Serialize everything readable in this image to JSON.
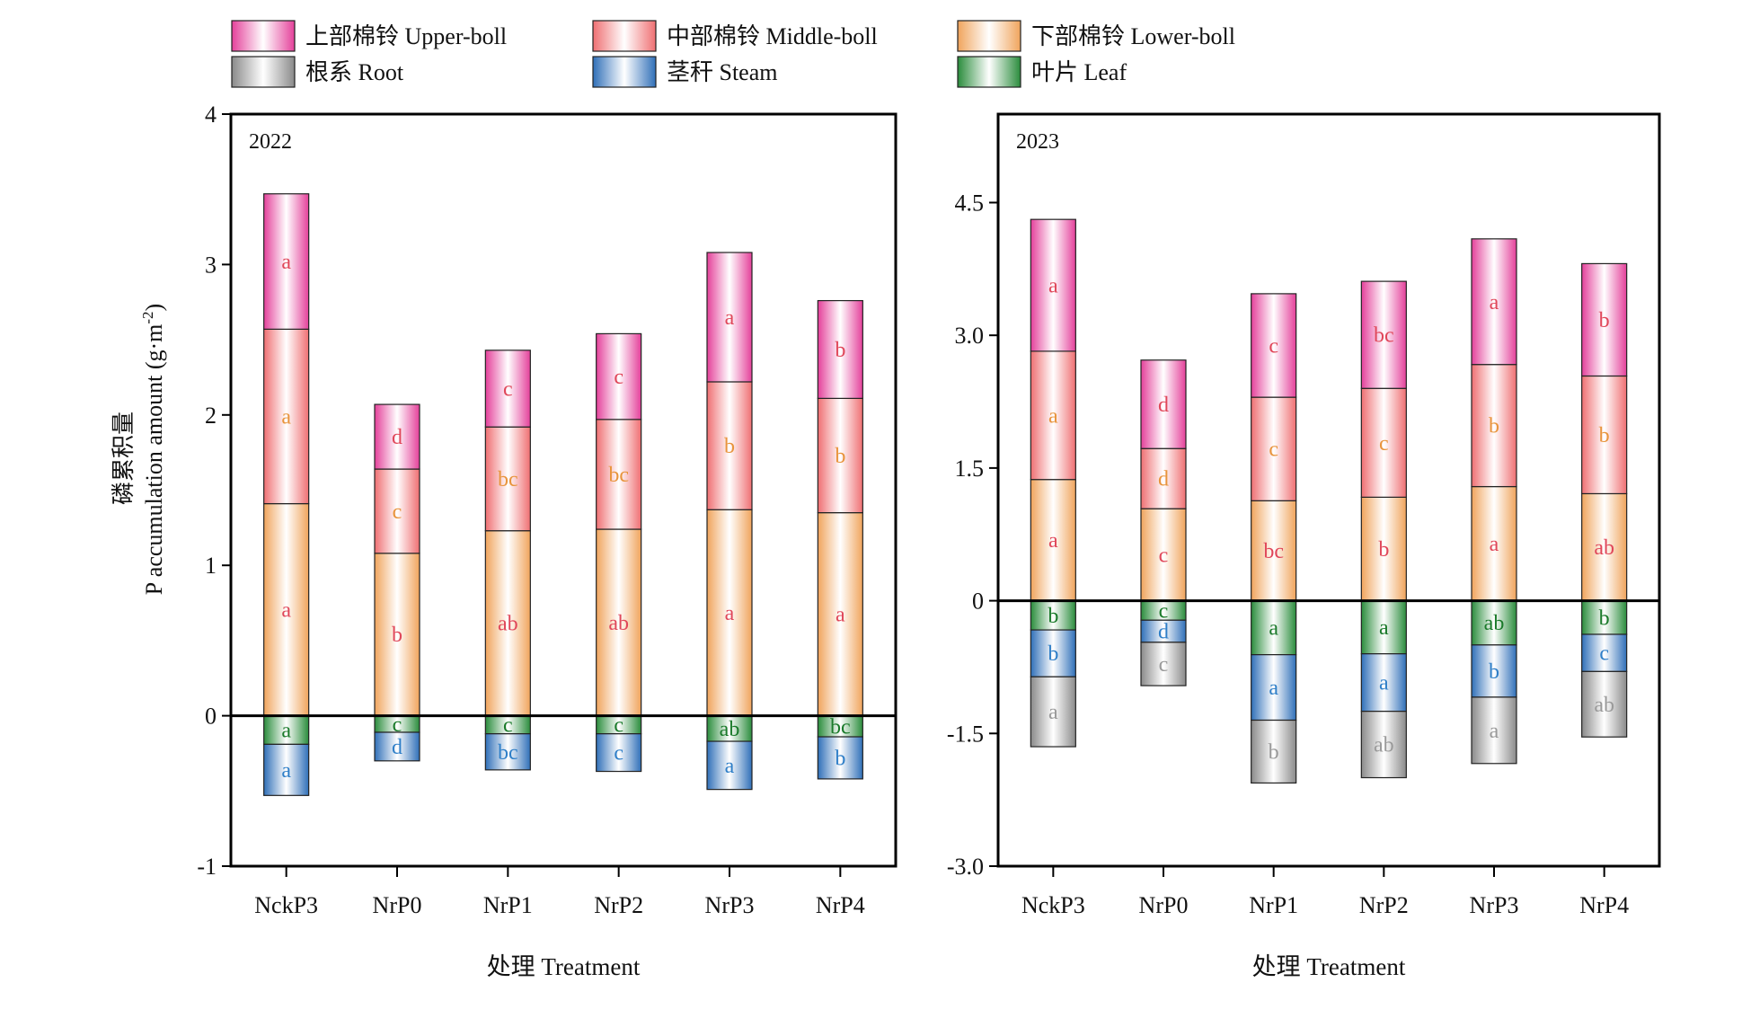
{
  "legend": [
    {
      "key": "upper",
      "label": "上部棉铃 Upper-boll",
      "color": "#e4409a"
    },
    {
      "key": "middle",
      "label": "中部棉铃 Middle-boll",
      "color": "#ef6f72"
    },
    {
      "key": "lower",
      "label": "下部棉铃 Lower-boll",
      "color": "#f0a45c"
    },
    {
      "key": "root",
      "label": "根系 Root",
      "color": "#8a8a8a"
    },
    {
      "key": "stem",
      "label": "茎秆 Steam",
      "color": "#2f6fb8"
    },
    {
      "key": "leaf",
      "label": "叶片 Leaf",
      "color": "#2a8c3c"
    }
  ],
  "letter_colors": {
    "upper": "#e0475a",
    "middle": "#e8943c",
    "lower": "#e0475a",
    "root": "#9a9a9a",
    "stem": "#2f7fc8",
    "leaf": "#1a7a2a"
  },
  "ylabel_line1": "磷累积量",
  "ylabel_line2": "P accumulation amount (g·m",
  "ylabel_sup": "-2",
  "ylabel_end": ")",
  "chart_data": [
    {
      "type": "bar",
      "stacked": true,
      "panel_label": "2022",
      "xlabel": "处理 Treatment",
      "ylim": [
        -1,
        4
      ],
      "yticks": [
        -1,
        0,
        1,
        2,
        3,
        4
      ],
      "ytick_labels": [
        "-1",
        "0",
        "1",
        "2",
        "3",
        "4"
      ],
      "categories": [
        "NckP3",
        "NrP0",
        "NrP1",
        "NrP2",
        "NrP3",
        "NrP4"
      ],
      "series": [
        {
          "key": "lower",
          "name": "下部棉铃 Lower-boll",
          "values": [
            1.41,
            1.08,
            1.23,
            1.24,
            1.37,
            1.35
          ],
          "letters": [
            "a",
            "b",
            "ab",
            "ab",
            "a",
            "a"
          ]
        },
        {
          "key": "middle",
          "name": "中部棉铃 Middle-boll",
          "values": [
            1.16,
            0.56,
            0.69,
            0.73,
            0.85,
            0.76
          ],
          "letters": [
            "a",
            "c",
            "bc",
            "bc",
            "b",
            "b"
          ]
        },
        {
          "key": "upper",
          "name": "上部棉铃 Upper-boll",
          "values": [
            0.9,
            0.43,
            0.51,
            0.57,
            0.86,
            0.65
          ],
          "letters": [
            "a",
            "d",
            "c",
            "c",
            "a",
            "b"
          ]
        },
        {
          "key": "leaf",
          "name": "叶片 Leaf",
          "values": [
            -0.19,
            -0.11,
            -0.12,
            -0.12,
            -0.17,
            -0.14
          ],
          "letters": [
            "a",
            "c",
            "c",
            "c",
            "ab",
            "bc"
          ]
        },
        {
          "key": "stem",
          "name": "茎秆 Steam",
          "values": [
            -0.34,
            -0.19,
            -0.24,
            -0.25,
            -0.32,
            -0.28
          ],
          "letters": [
            "a",
            "d",
            "bc",
            "c",
            "a",
            "b"
          ]
        }
      ]
    },
    {
      "type": "bar",
      "stacked": true,
      "panel_label": "2023",
      "xlabel": "处理 Treatment",
      "ylim": [
        -3.0,
        5.5
      ],
      "yticks": [
        -3.0,
        -1.5,
        0,
        1.5,
        3.0,
        4.5
      ],
      "ytick_labels": [
        "-3.0",
        "-1.5",
        "0",
        "1.5",
        "3.0",
        "4.5"
      ],
      "categories": [
        "NckP3",
        "NrP0",
        "NrP1",
        "NrP2",
        "NrP3",
        "NrP4"
      ],
      "series": [
        {
          "key": "lower",
          "name": "下部棉铃 Lower-boll",
          "values": [
            1.37,
            1.04,
            1.13,
            1.17,
            1.29,
            1.21
          ],
          "letters": [
            "a",
            "c",
            "bc",
            "b",
            "a",
            "ab"
          ]
        },
        {
          "key": "middle",
          "name": "中部棉铃 Middle-boll",
          "values": [
            1.45,
            0.68,
            1.17,
            1.23,
            1.38,
            1.33
          ],
          "letters": [
            "a",
            "d",
            "c",
            "c",
            "b",
            "b"
          ]
        },
        {
          "key": "upper",
          "name": "上部棉铃 Upper-boll",
          "values": [
            1.49,
            1.0,
            1.17,
            1.21,
            1.42,
            1.27
          ],
          "letters": [
            "a",
            "d",
            "c",
            "bc",
            "a",
            "b"
          ]
        },
        {
          "key": "leaf",
          "name": "叶片 Leaf",
          "values": [
            -0.33,
            -0.22,
            -0.61,
            -0.6,
            -0.5,
            -0.38
          ],
          "letters": [
            "b",
            "c",
            "a",
            "a",
            "ab",
            "b"
          ]
        },
        {
          "key": "stem",
          "name": "茎秆 Steam",
          "values": [
            -0.53,
            -0.25,
            -0.74,
            -0.65,
            -0.59,
            -0.42
          ],
          "letters": [
            "b",
            "d",
            "a",
            "a",
            "b",
            "c"
          ]
        },
        {
          "key": "root",
          "name": "根系 Root",
          "values": [
            -0.79,
            -0.49,
            -0.71,
            -0.75,
            -0.75,
            -0.74
          ],
          "letters": [
            "a",
            "c",
            "b",
            "ab",
            "a",
            "ab"
          ]
        }
      ]
    }
  ]
}
